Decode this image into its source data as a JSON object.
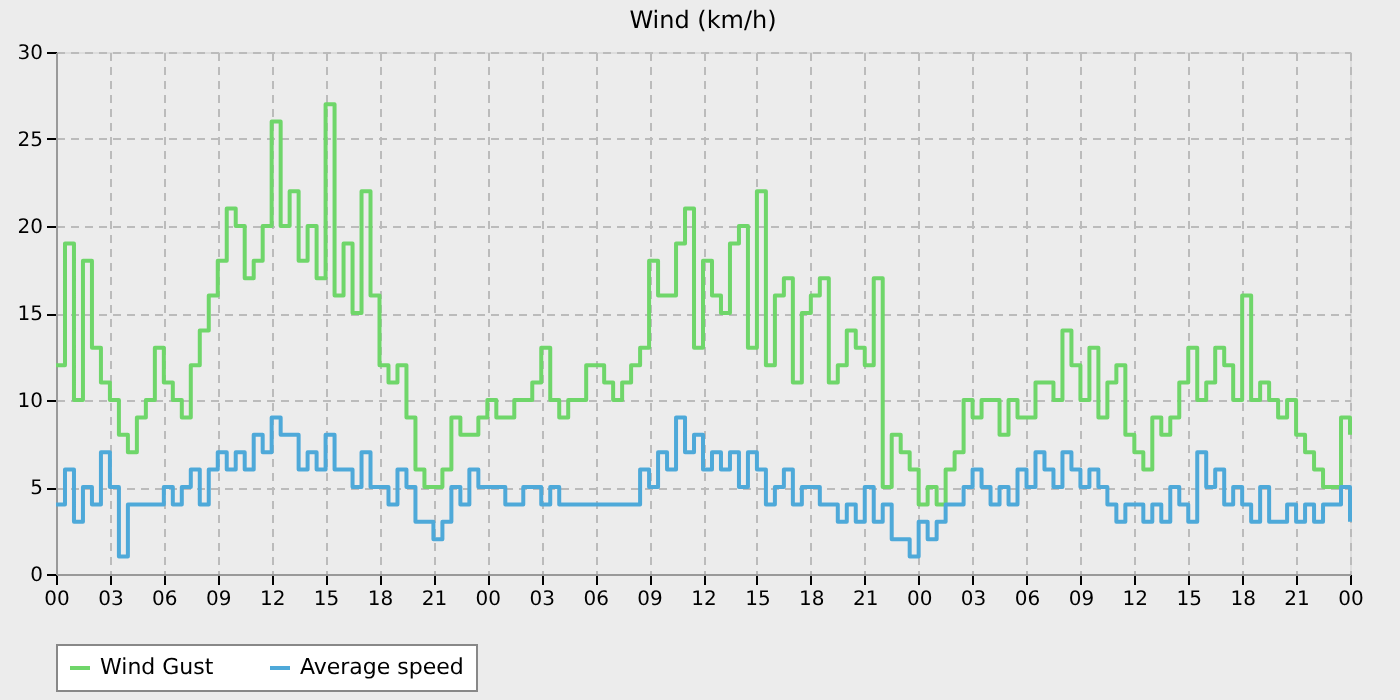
{
  "chart_data": {
    "type": "step",
    "title": "Wind (km/h)",
    "x": [
      0,
      0.5,
      1,
      1.5,
      2,
      2.5,
      3,
      3.5,
      4,
      4.5,
      5,
      5.5,
      6,
      6.5,
      7,
      7.5,
      8,
      8.5,
      9,
      9.5,
      10,
      10.5,
      11,
      11.5,
      12,
      12.5,
      13,
      13.5,
      14,
      14.5,
      15,
      15.5,
      16,
      16.5,
      17,
      17.5,
      18,
      18.5,
      19,
      19.5,
      20,
      20.5,
      21,
      21.5,
      22,
      22.5,
      23,
      23.5,
      24,
      24.5,
      25,
      25.5,
      26,
      26.5,
      27,
      27.5,
      28,
      28.5,
      29,
      29.5,
      30,
      30.5,
      31,
      31.5,
      32,
      32.5,
      33,
      33.5,
      34,
      34.5,
      35,
      35.5,
      36,
      36.5,
      37,
      37.5,
      38,
      38.5,
      39,
      39.5,
      40,
      40.5,
      41,
      41.5,
      42,
      42.5,
      43,
      43.5,
      44,
      44.5,
      45,
      45.5,
      46,
      46.5,
      47,
      47.5,
      48,
      48.5,
      49,
      49.5,
      50,
      50.5,
      51,
      51.5,
      52,
      52.5,
      53,
      53.5,
      54,
      54.5,
      55,
      55.5,
      56,
      56.5,
      57,
      57.5,
      58,
      58.5,
      59,
      59.5,
      60,
      60.5,
      61,
      61.5,
      62,
      62.5,
      63,
      63.5,
      64,
      64.5,
      65,
      65.5,
      66,
      66.5,
      67,
      67.5,
      68,
      68.5,
      69,
      69.5,
      70,
      70.5,
      71,
      71.5,
      72
    ],
    "series": [
      {
        "name": "Wind Gust",
        "color": "#6fd66a",
        "values": [
          12,
          19,
          10,
          18,
          13,
          11,
          10,
          8,
          7,
          9,
          10,
          13,
          11,
          10,
          9,
          12,
          14,
          16,
          18,
          21,
          20,
          17,
          18,
          20,
          26,
          20,
          22,
          18,
          20,
          17,
          27,
          16,
          19,
          15,
          22,
          16,
          12,
          11,
          12,
          9,
          6,
          5,
          5,
          6,
          9,
          8,
          8,
          9,
          10,
          9,
          9,
          10,
          10,
          11,
          13,
          10,
          9,
          10,
          10,
          12,
          12,
          11,
          10,
          11,
          12,
          13,
          18,
          16,
          16,
          19,
          21,
          13,
          18,
          16,
          15,
          19,
          20,
          13,
          22,
          12,
          16,
          17,
          11,
          15,
          16,
          17,
          11,
          12,
          14,
          13,
          12,
          17,
          5,
          8,
          7,
          6,
          4,
          5,
          4,
          6,
          7,
          10,
          9,
          10,
          10,
          8,
          10,
          9,
          9,
          11,
          11,
          10,
          14,
          12,
          10,
          13,
          9,
          11,
          12,
          8,
          7,
          6,
          9,
          8,
          9,
          11,
          13,
          10,
          11,
          13,
          12,
          10,
          16,
          10,
          11,
          10,
          9,
          10,
          8,
          7,
          6,
          5,
          5,
          9,
          8
        ]
      },
      {
        "name": "Average speed",
        "color": "#4ea9d9",
        "values": [
          4,
          6,
          3,
          5,
          4,
          7,
          5,
          1,
          4,
          4,
          4,
          4,
          5,
          4,
          5,
          6,
          4,
          6,
          7,
          6,
          7,
          6,
          8,
          7,
          9,
          8,
          8,
          6,
          7,
          6,
          8,
          6,
          6,
          5,
          7,
          5,
          5,
          4,
          6,
          5,
          3,
          3,
          2,
          3,
          5,
          4,
          6,
          5,
          5,
          5,
          4,
          4,
          5,
          5,
          4,
          5,
          4,
          4,
          4,
          4,
          4,
          4,
          4,
          4,
          4,
          6,
          5,
          7,
          6,
          9,
          7,
          8,
          6,
          7,
          6,
          7,
          5,
          7,
          6,
          4,
          5,
          6,
          4,
          5,
          5,
          4,
          4,
          3,
          4,
          3,
          5,
          3,
          4,
          2,
          2,
          1,
          3,
          2,
          3,
          4,
          4,
          5,
          6,
          5,
          4,
          5,
          4,
          6,
          5,
          7,
          6,
          5,
          7,
          6,
          5,
          6,
          5,
          4,
          3,
          4,
          4,
          3,
          4,
          3,
          5,
          4,
          3,
          7,
          5,
          6,
          4,
          5,
          4,
          3,
          5,
          3,
          3,
          4,
          3,
          4,
          3,
          4,
          4,
          5,
          3
        ]
      }
    ],
    "xlim": [
      0,
      72
    ],
    "xticks": [
      {
        "value": 0,
        "label": "00"
      },
      {
        "value": 3,
        "label": "03"
      },
      {
        "value": 6,
        "label": "06"
      },
      {
        "value": 9,
        "label": "09"
      },
      {
        "value": 12,
        "label": "12"
      },
      {
        "value": 15,
        "label": "15"
      },
      {
        "value": 18,
        "label": "18"
      },
      {
        "value": 21,
        "label": "21"
      },
      {
        "value": 24,
        "label": "00"
      },
      {
        "value": 27,
        "label": "03"
      },
      {
        "value": 30,
        "label": "06"
      },
      {
        "value": 33,
        "label": "09"
      },
      {
        "value": 36,
        "label": "12"
      },
      {
        "value": 39,
        "label": "15"
      },
      {
        "value": 42,
        "label": "18"
      },
      {
        "value": 45,
        "label": "21"
      },
      {
        "value": 48,
        "label": "00"
      },
      {
        "value": 51,
        "label": "03"
      },
      {
        "value": 54,
        "label": "06"
      },
      {
        "value": 57,
        "label": "09"
      },
      {
        "value": 60,
        "label": "12"
      },
      {
        "value": 63,
        "label": "15"
      },
      {
        "value": 66,
        "label": "18"
      },
      {
        "value": 69,
        "label": "21"
      },
      {
        "value": 72,
        "label": "00"
      }
    ],
    "ylim": [
      0,
      30
    ],
    "yticks": [
      0,
      5,
      10,
      15,
      20,
      25,
      30
    ],
    "grid": true,
    "legend": "bottom",
    "line_style": "solid",
    "marker": "none"
  }
}
